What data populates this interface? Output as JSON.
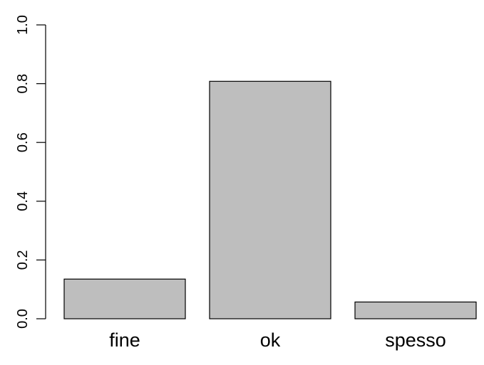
{
  "chart_data": {
    "type": "bar",
    "categories": [
      "fine",
      "ok",
      "spesso"
    ],
    "values": [
      0.135,
      0.808,
      0.057
    ],
    "title": "",
    "xlabel": "",
    "ylabel": "",
    "ylim": [
      0,
      1
    ],
    "yticks": [
      "0.0",
      "0.2",
      "0.4",
      "0.6",
      "0.8",
      "1.0"
    ],
    "grid": false,
    "bar_color": "#bebebe",
    "bar_edge_color": "#000000"
  }
}
